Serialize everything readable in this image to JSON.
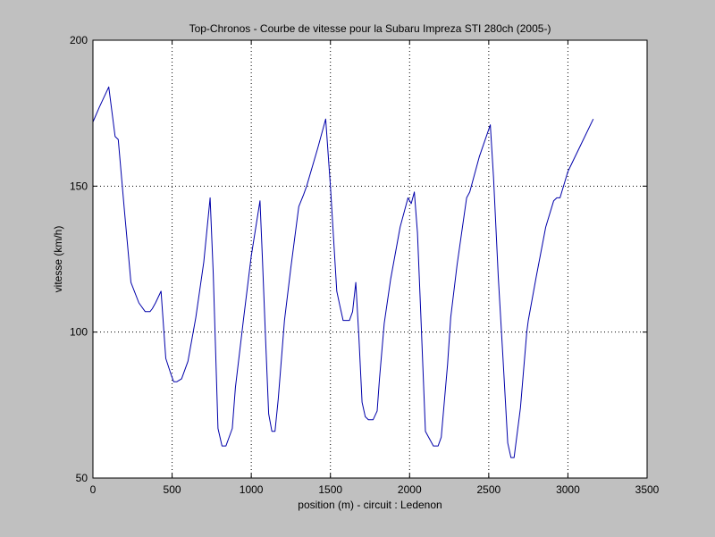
{
  "chart_data": {
    "type": "line",
    "title": "Top-Chronos - Courbe de vitesse pour la Subaru Impreza STI 280ch (2005-)",
    "xlabel": "position (m) - circuit : Ledenon",
    "ylabel": "vitesse (km/h)",
    "xlim": [
      0,
      3500
    ],
    "ylim": [
      50,
      200
    ],
    "xticks": [
      0,
      500,
      1000,
      1500,
      2000,
      2500,
      3000,
      3500
    ],
    "yticks": [
      50,
      100,
      150,
      200
    ],
    "grid": true,
    "line_color": "#0000aa",
    "background": "#ffffff",
    "figure_background": "#c0c0c0",
    "series": [
      {
        "x": [
          0,
          40,
          100,
          140,
          160,
          200,
          240,
          290,
          330,
          360,
          375,
          395,
          430,
          460,
          490,
          510,
          530,
          560,
          600,
          650,
          700,
          740,
          760,
          790,
          815,
          840,
          880,
          900,
          950,
          1000,
          1055,
          1070,
          1090,
          1110,
          1130,
          1150,
          1170,
          1210,
          1250,
          1300,
          1330,
          1350,
          1420,
          1470,
          1500,
          1540,
          1560,
          1580,
          1620,
          1640,
          1660,
          1680,
          1700,
          1720,
          1740,
          1770,
          1795,
          1810,
          1840,
          1880,
          1940,
          1990,
          2010,
          2030,
          2050,
          2070,
          2100,
          2150,
          2180,
          2200,
          2240,
          2260,
          2300,
          2360,
          2380,
          2440,
          2510,
          2530,
          2560,
          2590,
          2620,
          2640,
          2660,
          2700,
          2740,
          2750,
          2800,
          2860,
          2910,
          2930,
          2950,
          3000,
          3080,
          3160
        ],
        "y": [
          172,
          177,
          184,
          167,
          166,
          141,
          117,
          110,
          107,
          107,
          108,
          110,
          114,
          91,
          86,
          83,
          83,
          84,
          90,
          105,
          124,
          146,
          120,
          67,
          61,
          61,
          67,
          81,
          104,
          126,
          145,
          126,
          98,
          72,
          66,
          66,
          77,
          104,
          122,
          143,
          147,
          150,
          163,
          173,
          150,
          114,
          109,
          104,
          104,
          107,
          117,
          98,
          76,
          71,
          70,
          70,
          73,
          84,
          103,
          118,
          136,
          146,
          144,
          148,
          134,
          107,
          66,
          61,
          61,
          64,
          89,
          105,
          123,
          146,
          148,
          160,
          171,
          153,
          119,
          91,
          62,
          57,
          57,
          74,
          100,
          104,
          119,
          136,
          145,
          146,
          146,
          155,
          164,
          173
        ]
      }
    ]
  }
}
